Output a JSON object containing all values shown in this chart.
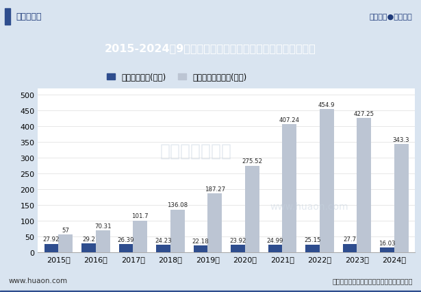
{
  "title": "2015-2024年9月内蒙古建筑业装饰装修及在外省完成的产值",
  "years": [
    "2015年",
    "2016年",
    "2017年",
    "2018年",
    "2019年",
    "2020年",
    "2021年",
    "2022年",
    "2023年",
    "2024年"
  ],
  "decoration_values": [
    27.92,
    29.2,
    26.39,
    24.23,
    22.18,
    23.92,
    24.99,
    25.15,
    27.7,
    16.03
  ],
  "outside_values": [
    57,
    70.31,
    101.7,
    136.08,
    187.27,
    275.52,
    407.24,
    454.9,
    427.25,
    343.3
  ],
  "decoration_color": "#2e4d8e",
  "outside_color": "#bcc5d3",
  "legend_decoration": "装饰装修产值(亿元)",
  "legend_outside": "在外省完成的产值(亿元)",
  "ylim": [
    0,
    520
  ],
  "yticks": [
    0,
    50,
    100,
    150,
    200,
    250,
    300,
    350,
    400,
    450,
    500
  ],
  "title_bg_color": "#1e4d9b",
  "title_text_color": "#ffffff",
  "outer_bg_color": "#d9e4f0",
  "chart_bg_color": "#ffffff",
  "bar_width": 0.38,
  "footer_left": "www.huaon.com",
  "footer_right": "数据来源：国家统计局；华经产业研究院整理",
  "logo_text_left": "华经情报网",
  "logo_text_right": "专业严谨●客观科学",
  "top_blue_bar_color": "#2e4d8e",
  "top_blue_bar_height": 0.012,
  "watermark1": "华经产业研究院",
  "watermark2": "www.huaon.com"
}
